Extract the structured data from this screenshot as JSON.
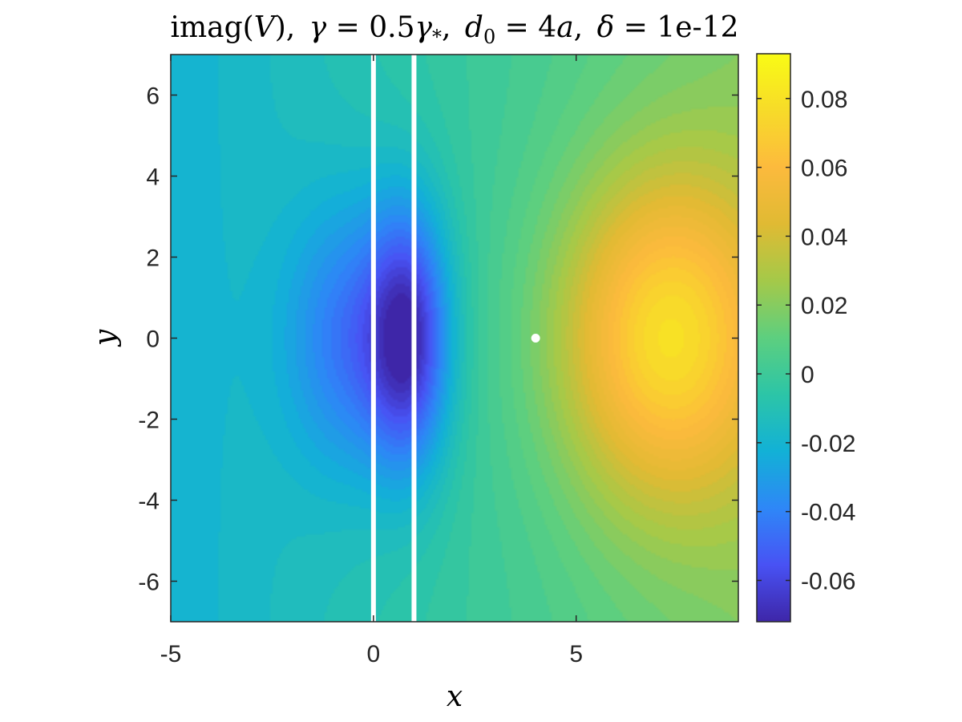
{
  "chart_data": {
    "type": "heatmap",
    "title": "imag(V), γ = 0.5γ*, d₀ = 4a, δ = 1e-12",
    "title_parts": {
      "func": "imag",
      "open": "(",
      "var": "V",
      "close": "),",
      "gamma_sym": "γ",
      "gamma_eq": " = 0.5",
      "gamma_sym2": "γ",
      "gamma_sub": "*",
      "gamma_comma": ",",
      "d_sym": "d",
      "d_sub": "0",
      "d_eq": " = 4",
      "d_unit": "a",
      "d_comma": ",",
      "delta_sym": "δ",
      "delta_eq": " = 1e-12"
    },
    "xlabel": "x",
    "ylabel": "y",
    "xlim": [
      -5,
      9
    ],
    "ylim": [
      -7,
      7
    ],
    "x_ticks": [
      -5,
      0,
      5
    ],
    "x_tick_labels": [
      "-5",
      "0",
      "5"
    ],
    "y_ticks": [
      6,
      4,
      2,
      0,
      -2,
      -4,
      -6
    ],
    "y_tick_labels": [
      "6",
      "4",
      "2",
      "0",
      "-2",
      "-4",
      "-6"
    ],
    "colorbar": {
      "limits": [
        -0.072,
        0.093
      ],
      "ticks": [
        0.08,
        0.06,
        0.04,
        0.02,
        0,
        -0.02,
        -0.04,
        -0.06
      ],
      "tick_labels": [
        "0.08",
        "0.06",
        "0.04",
        "0.02",
        "0",
        "-0.02",
        "-0.04",
        "-0.06"
      ],
      "colormap": "parula"
    },
    "field_features": [
      {
        "kind": "minimum",
        "x": 0.9,
        "y": 0,
        "value": -0.07
      },
      {
        "kind": "minimum",
        "x": -0.5,
        "y": 0,
        "value": -0.05
      },
      {
        "kind": "maximum",
        "x": 7.2,
        "y": 0,
        "value": 0.09
      }
    ],
    "vertical_lines": [
      {
        "x": 0,
        "color": "#ffffff"
      },
      {
        "x": 1,
        "color": "#ffffff"
      }
    ],
    "marker": {
      "x": 4,
      "y": 0,
      "color": "#ffffff"
    },
    "grid": false
  }
}
